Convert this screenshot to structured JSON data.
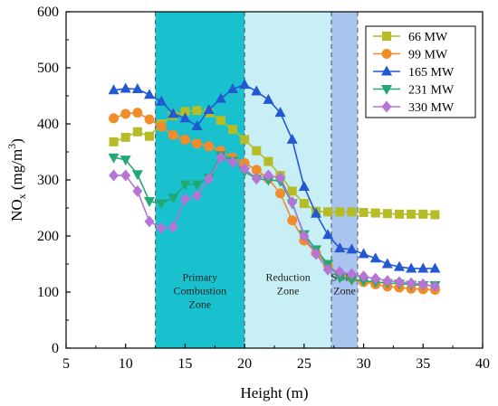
{
  "chart_data": {
    "type": "line",
    "xlabel": "Height (m)",
    "ylabel": {
      "main": "NO",
      "sub": "x",
      "unit_pre": " (mg/m",
      "sup": "3",
      "unit_post": ")"
    },
    "xlim": [
      5,
      40
    ],
    "ylim": [
      0,
      600
    ],
    "xticks": [
      5,
      10,
      15,
      20,
      25,
      30,
      35,
      40
    ],
    "yticks": [
      0,
      100,
      200,
      300,
      400,
      500,
      600
    ],
    "legend_position": "top-right",
    "zones": [
      {
        "name": "primary",
        "x0": 12.5,
        "x1": 20.0,
        "color": "#19c1cf",
        "lines": [
          "Primary",
          "Combustion",
          "Zone"
        ],
        "label_y": 80
      },
      {
        "name": "reduction",
        "x0": 20.0,
        "x1": 27.3,
        "color": "#c8eef6",
        "lines": [
          "Reduction",
          "Zone"
        ],
        "label_y": 80
      },
      {
        "name": "sofa",
        "x0": 27.3,
        "x1": 29.5,
        "color": "#a9c4ee",
        "lines": [
          "SOFA",
          "Zone"
        ],
        "label_y": 80
      }
    ],
    "series": [
      {
        "name": "66 MW",
        "color": "#b5bc26",
        "marker": "square",
        "x": [
          9,
          10,
          11,
          12,
          13,
          14,
          15,
          16,
          17,
          18,
          19,
          20,
          21,
          22,
          23,
          24,
          25,
          26,
          27,
          28,
          29,
          30,
          31,
          32,
          33,
          34,
          35,
          36
        ],
        "y": [
          368,
          376,
          386,
          378,
          400,
          415,
          422,
          424,
          420,
          406,
          390,
          372,
          352,
          333,
          308,
          280,
          258,
          244,
          243,
          243,
          243,
          242,
          241,
          240,
          239,
          239,
          239,
          238
        ]
      },
      {
        "name": "99 MW",
        "color": "#f08c2a",
        "marker": "circle",
        "x": [
          9,
          10,
          11,
          12,
          13,
          14,
          15,
          16,
          17,
          18,
          19,
          20,
          21,
          22,
          23,
          24,
          25,
          26,
          27,
          28,
          29,
          30,
          31,
          32,
          33,
          34,
          35,
          36
        ],
        "y": [
          410,
          418,
          420,
          408,
          395,
          380,
          372,
          365,
          360,
          352,
          340,
          330,
          318,
          302,
          276,
          228,
          192,
          170,
          148,
          132,
          125,
          118,
          114,
          110,
          108,
          106,
          105,
          104
        ]
      },
      {
        "name": "165 MW",
        "color": "#2358d3",
        "marker": "triangle-up",
        "x": [
          9,
          10,
          11,
          12,
          13,
          14,
          15,
          16,
          17,
          18,
          19,
          20,
          21,
          22,
          23,
          24,
          25,
          26,
          27,
          28,
          29,
          30,
          31,
          32,
          33,
          34,
          35,
          36
        ],
        "y": [
          460,
          463,
          462,
          452,
          440,
          418,
          410,
          396,
          425,
          445,
          462,
          470,
          458,
          443,
          420,
          372,
          288,
          240,
          202,
          178,
          176,
          168,
          160,
          150,
          145,
          142,
          142,
          142
        ]
      },
      {
        "name": "231 MW",
        "color": "#22a874",
        "marker": "triangle-down",
        "x": [
          9,
          10,
          11,
          12,
          13,
          14,
          15,
          16,
          17,
          18,
          19,
          20,
          21,
          22,
          23,
          24,
          25,
          26,
          27,
          28,
          29,
          30,
          31,
          32,
          33,
          34,
          35,
          36
        ],
        "y": [
          340,
          336,
          310,
          262,
          258,
          268,
          292,
          292,
          304,
          344,
          334,
          315,
          302,
          300,
          298,
          258,
          203,
          176,
          150,
          126,
          122,
          120,
          118,
          116,
          115,
          113,
          112,
          112
        ]
      },
      {
        "name": "330 MW",
        "color": "#b675d4",
        "marker": "diamond",
        "x": [
          9,
          10,
          11,
          12,
          13,
          14,
          15,
          16,
          17,
          18,
          19,
          20,
          21,
          22,
          23,
          24,
          25,
          26,
          27,
          28,
          29,
          30,
          31,
          32,
          33,
          34,
          35,
          36
        ],
        "y": [
          308,
          308,
          280,
          226,
          214,
          216,
          266,
          272,
          302,
          340,
          332,
          320,
          302,
          308,
          304,
          260,
          200,
          168,
          140,
          136,
          132,
          128,
          124,
          120,
          118,
          116,
          114,
          110
        ]
      }
    ]
  }
}
